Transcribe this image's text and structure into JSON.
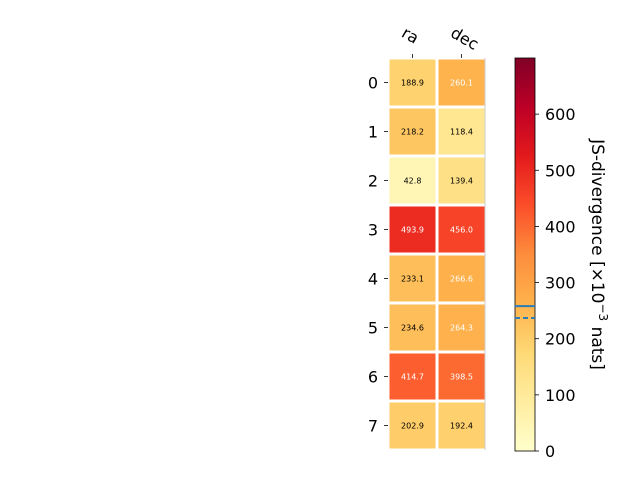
{
  "chart_data": {
    "type": "heatmap",
    "columns": [
      "ra",
      "dec"
    ],
    "rows": [
      "0",
      "1",
      "2",
      "3",
      "4",
      "5",
      "6",
      "7"
    ],
    "values": [
      [
        188.9,
        260.1
      ],
      [
        218.2,
        118.4
      ],
      [
        42.8,
        139.4
      ],
      [
        493.9,
        456.0
      ],
      [
        233.1,
        266.6
      ],
      [
        234.6,
        264.3
      ],
      [
        414.7,
        398.5
      ],
      [
        202.9,
        192.4
      ]
    ],
    "value_labels": [
      [
        "188.9",
        "260.1"
      ],
      [
        "218.2",
        "118.4"
      ],
      [
        "42.8",
        "139.4"
      ],
      [
        "493.9",
        "456.0"
      ],
      [
        "233.1",
        "266.6"
      ],
      [
        "234.6",
        "264.3"
      ],
      [
        "414.7",
        "398.5"
      ],
      [
        "202.9",
        "192.4"
      ]
    ],
    "colormap": "YlOrRd",
    "colorbar": {
      "label_main": "JS-divergence [×10",
      "label_exp": "−3",
      "label_unit": " nats]",
      "range": [
        0,
        700
      ],
      "ticks": [
        "0",
        "100",
        "200",
        "300",
        "400",
        "500",
        "600"
      ],
      "marker_solid": 258,
      "marker_dashed": 237,
      "marker_color": "#2c7bb6"
    }
  }
}
